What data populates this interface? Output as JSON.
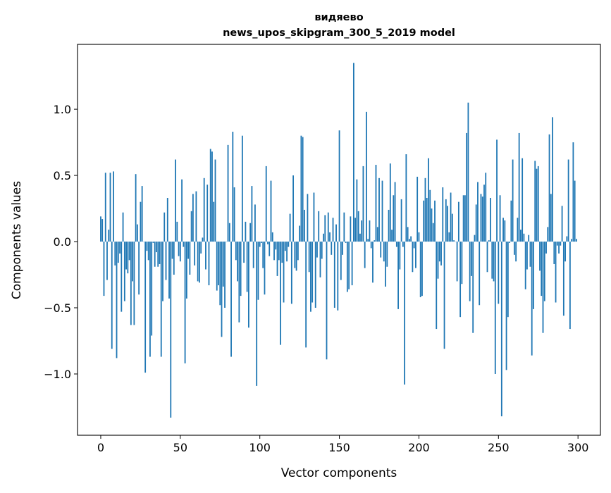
{
  "chart_data": {
    "type": "bar",
    "title": [
      "видяево",
      "news_upos_skipgram_300_5_2019 model"
    ],
    "xlabel": "Vector components",
    "ylabel": "Components values",
    "xlim": [
      -14.6,
      314.1
    ],
    "ylim": [
      -1.463,
      1.49
    ],
    "xticks": [
      0,
      50,
      100,
      150,
      200,
      250,
      300
    ],
    "xtick_labels": [
      "0",
      "50",
      "100",
      "150",
      "200",
      "250",
      "300"
    ],
    "yticks": [
      -1.0,
      -0.5,
      0.0,
      0.5,
      1.0
    ],
    "ytick_labels": [
      "−1.0",
      "−0.5",
      "0.0",
      "0.5",
      "1.0"
    ],
    "grid": false,
    "color": "#1f77b4",
    "values": [
      0.19,
      0.17,
      -0.41,
      0.52,
      -0.29,
      0.09,
      0.52,
      -0.81,
      0.53,
      -0.18,
      -0.88,
      -0.16,
      -0.09,
      -0.53,
      0.22,
      -0.45,
      -0.21,
      -0.24,
      -0.14,
      -0.63,
      -0.3,
      -0.63,
      0.51,
      0.13,
      -0.4,
      0.3,
      0.42,
      0.0,
      -0.99,
      -0.07,
      -0.14,
      -0.87,
      -0.71,
      -0.01,
      -0.19,
      -0.08,
      -0.19,
      -0.17,
      -0.87,
      -0.45,
      0.22,
      -0.29,
      0.33,
      -0.43,
      -1.33,
      -0.13,
      -0.25,
      0.62,
      0.15,
      -0.11,
      -0.15,
      0.47,
      -0.04,
      -0.92,
      -0.43,
      -0.13,
      -0.25,
      0.23,
      0.36,
      -0.18,
      0.38,
      -0.3,
      -0.31,
      -0.09,
      0.03,
      0.48,
      -0.21,
      0.43,
      -0.33,
      0.7,
      0.68,
      0.3,
      0.62,
      -0.37,
      -0.33,
      -0.48,
      -0.72,
      -0.34,
      -0.5,
      0.0,
      0.73,
      0.14,
      -0.87,
      0.83,
      0.41,
      -0.14,
      -0.3,
      -0.61,
      -0.41,
      0.8,
      -0.16,
      0.15,
      -0.38,
      -0.65,
      0.14,
      0.42,
      -0.2,
      0.28,
      -1.09,
      -0.44,
      -0.04,
      -0.01,
      -0.2,
      -0.4,
      0.57,
      -0.02,
      -0.11,
      0.46,
      0.07,
      -0.14,
      -0.06,
      -0.26,
      -0.14,
      -0.78,
      -0.16,
      -0.46,
      -0.07,
      -0.15,
      -0.04,
      0.21,
      -0.47,
      0.5,
      -0.2,
      -0.22,
      -0.14,
      0.12,
      0.8,
      0.79,
      0.24,
      -0.8,
      0.36,
      -0.23,
      -0.53,
      -0.46,
      0.37,
      -0.5,
      -0.12,
      0.23,
      -0.27,
      -0.13,
      0.06,
      0.2,
      -0.89,
      0.22,
      0.07,
      -0.1,
      0.18,
      -0.5,
      0.13,
      -0.52,
      0.84,
      -0.29,
      -0.1,
      0.22,
      -0.01,
      -0.38,
      -0.36,
      0.19,
      -0.33,
      1.35,
      0.18,
      0.47,
      0.23,
      0.06,
      0.16,
      0.57,
      -0.2,
      0.98,
      0.02,
      0.16,
      -0.05,
      -0.31,
      0.01,
      0.58,
      0.11,
      0.48,
      -0.12,
      0.46,
      -0.15,
      -0.34,
      -0.19,
      0.24,
      0.59,
      0.09,
      0.35,
      0.45,
      -0.04,
      -0.51,
      -0.21,
      0.32,
      -0.04,
      -1.08,
      0.66,
      0.11,
      0.02,
      0.04,
      -0.23,
      -0.05,
      -0.2,
      0.49,
      0.07,
      -0.42,
      -0.41,
      0.31,
      0.48,
      0.33,
      0.63,
      0.39,
      0.25,
      0.14,
      0.31,
      -0.66,
      -0.28,
      -0.15,
      -0.18,
      0.41,
      -0.81,
      0.32,
      0.27,
      0.07,
      0.37,
      0.21,
      0.01,
      0.0,
      -0.3,
      0.3,
      -0.57,
      -0.32,
      0.35,
      0.35,
      0.82,
      1.05,
      -0.45,
      -0.26,
      -0.69,
      0.05,
      0.28,
      0.45,
      -0.48,
      0.36,
      0.34,
      0.43,
      0.52,
      -0.23,
      0.01,
      0.33,
      -0.28,
      -0.3,
      -1.0,
      0.77,
      -0.47,
      0.35,
      -1.32,
      0.18,
      0.16,
      -0.97,
      -0.57,
      -0.01,
      0.31,
      0.62,
      -0.1,
      -0.15,
      0.18,
      0.82,
      0.09,
      0.63,
      0.06,
      -0.36,
      -0.21,
      0.05,
      -0.19,
      -0.86,
      -0.51,
      0.61,
      0.55,
      0.57,
      -0.22,
      -0.41,
      -0.69,
      -0.45,
      -0.09,
      0.11,
      0.81,
      0.36,
      0.94,
      -0.17,
      -0.46,
      -0.03,
      -0.09,
      -0.03,
      0.27,
      -0.56,
      -0.15,
      0.04,
      0.62,
      -0.66,
      0.02,
      0.75,
      0.46,
      0.02
    ]
  }
}
